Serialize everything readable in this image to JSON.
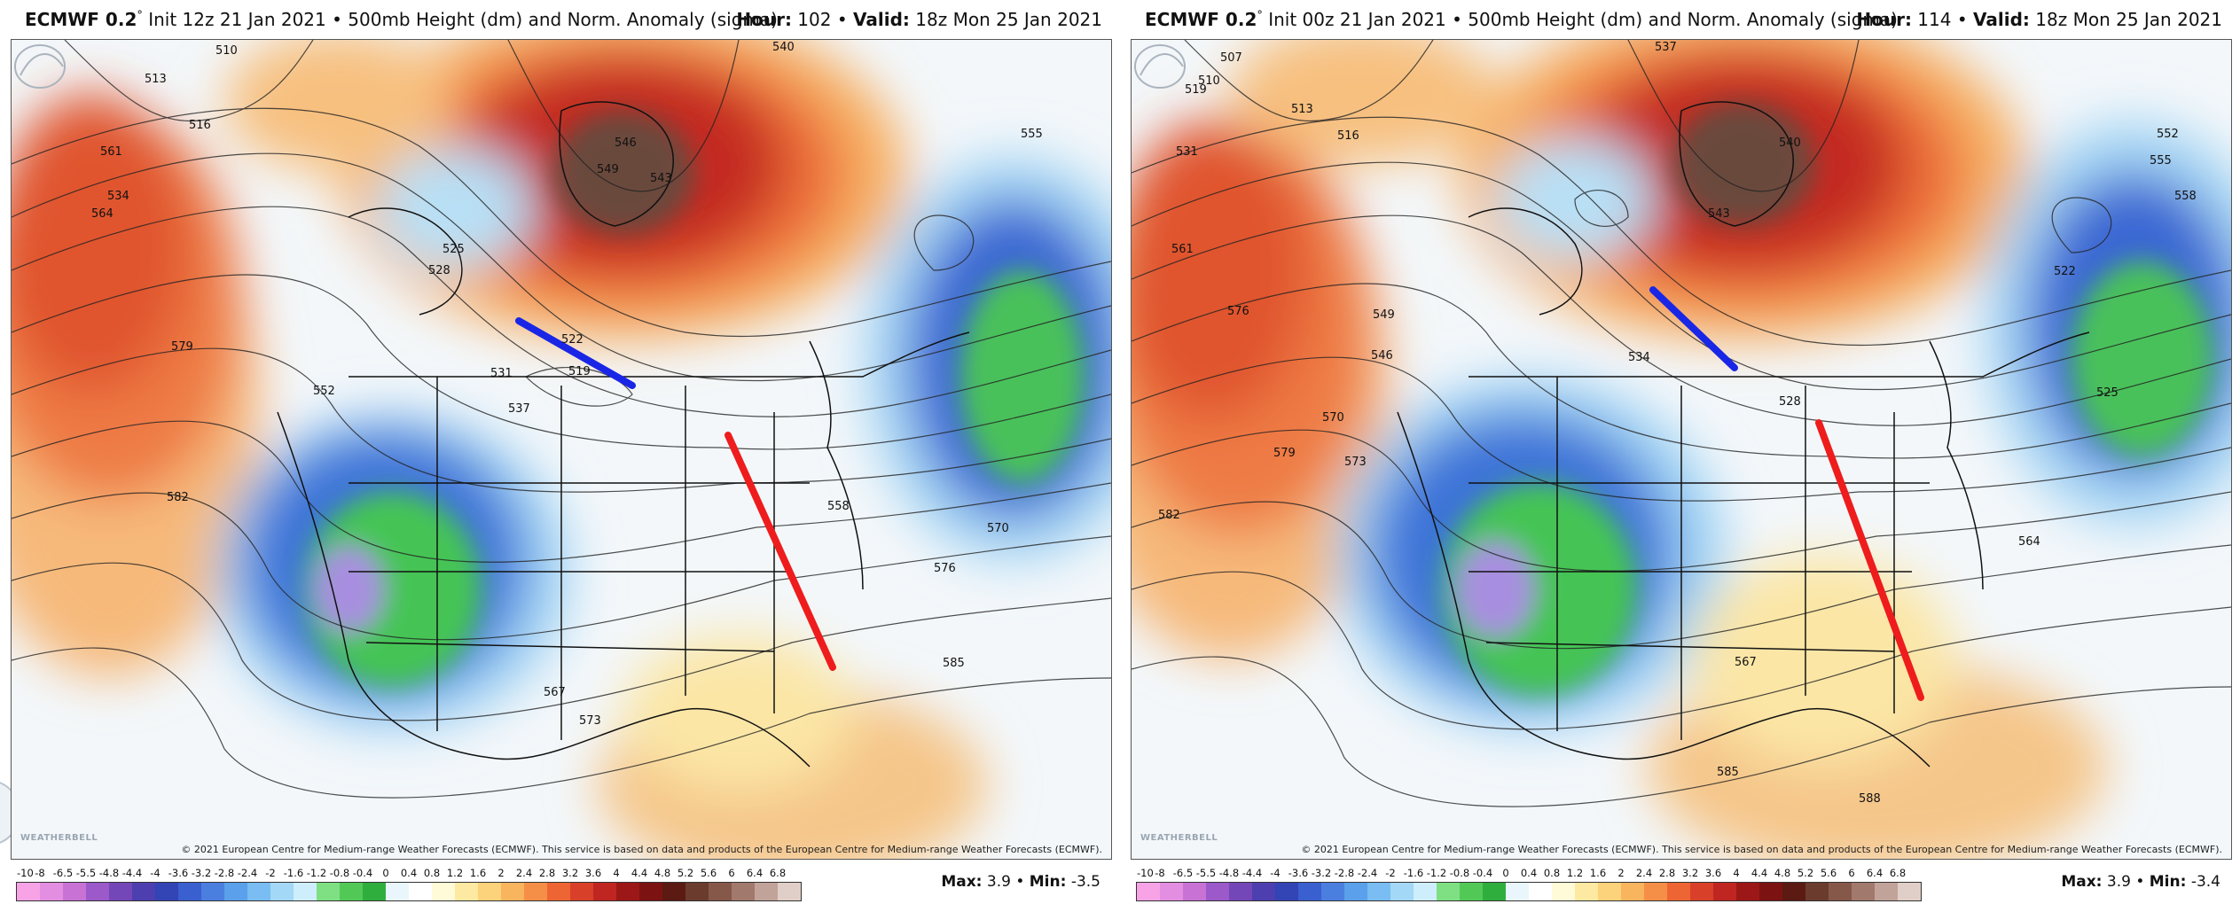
{
  "panels": [
    {
      "model": "ECMWF 0.2",
      "degree": "°",
      "init": "Init 12z 21 Jan 2021",
      "field": "500mb Height (dm) and Norm. Anomaly (sigma)",
      "hour_label": "Hour:",
      "hour": "102",
      "valid_label": "Valid:",
      "valid": "18z Mon 25 Jan 2021",
      "max_label": "Max:",
      "max": "3.9",
      "min_label": "Min:",
      "min": "-3.5",
      "contour_labels": [
        "510",
        "513",
        "516",
        "519",
        "522",
        "525",
        "528",
        "531",
        "534",
        "537",
        "540",
        "543",
        "546",
        "549",
        "552",
        "555",
        "558",
        "561",
        "564",
        "567",
        "570",
        "573",
        "576",
        "579",
        "582",
        "585"
      ]
    },
    {
      "model": "ECMWF 0.2",
      "degree": "°",
      "init": "Init 00z 21 Jan 2021",
      "field": "500mb Height (dm) and Norm. Anomaly (sigma)",
      "hour_label": "Hour:",
      "hour": "114",
      "valid_label": "Valid:",
      "valid": "18z Mon 25 Jan 2021",
      "max_label": "Max:",
      "max": "3.9",
      "min_label": "Min:",
      "min": "-3.4",
      "contour_labels": [
        "507",
        "510",
        "513",
        "516",
        "519",
        "522",
        "525",
        "528",
        "531",
        "534",
        "537",
        "540",
        "543",
        "546",
        "549",
        "552",
        "555",
        "558",
        "561",
        "564",
        "567",
        "570",
        "573",
        "576",
        "579",
        "582",
        "585",
        "588"
      ]
    }
  ],
  "copyright": "© 2021 European Centre for Medium-range Weather Forecasts (ECMWF). This service is based on data and products of the European Centre for Medium-range Weather Forecasts (ECMWF).",
  "logo": "WEATHERBELL",
  "colorbar": {
    "ticks": [
      "-10",
      "-8",
      "-6.5",
      "-5.5",
      "-4.8",
      "-4.4",
      "-4",
      "-3.6",
      "-3.2",
      "-2.8",
      "-2.4",
      "-2",
      "-1.6",
      "-1.2",
      "-0.8",
      "-0.4",
      "0",
      "0.4",
      "0.8",
      "1.2",
      "1.6",
      "2",
      "2.4",
      "2.8",
      "3.2",
      "3.6",
      "4",
      "4.4",
      "4.8",
      "5.2",
      "5.6",
      "6",
      "6.4",
      "6.8"
    ],
    "colors": [
      "#f7a3e6",
      "#e48ee2",
      "#c872d6",
      "#9b59c9",
      "#7447b8",
      "#4d3fb0",
      "#3344b5",
      "#3a5fcf",
      "#4a7fe0",
      "#5ba0ea",
      "#79bdf2",
      "#a3d8f7",
      "#cfeefc",
      "#7ee082",
      "#52c957",
      "#2fae3e",
      "#e9f6fb",
      "#ffffff",
      "#fffbd8",
      "#fde9a2",
      "#fcd27a",
      "#f9b45e",
      "#f58f47",
      "#ee6534",
      "#d9402a",
      "#c02621",
      "#9c1817",
      "#7c1312",
      "#5b1a12",
      "#6b3b2e",
      "#86584a",
      "#a17a6d",
      "#c2a39a",
      "#e0cfc8"
    ]
  },
  "annotation_colors": {
    "trough_line": "#1a26e6",
    "ridge_line": "#ee1c1c"
  }
}
